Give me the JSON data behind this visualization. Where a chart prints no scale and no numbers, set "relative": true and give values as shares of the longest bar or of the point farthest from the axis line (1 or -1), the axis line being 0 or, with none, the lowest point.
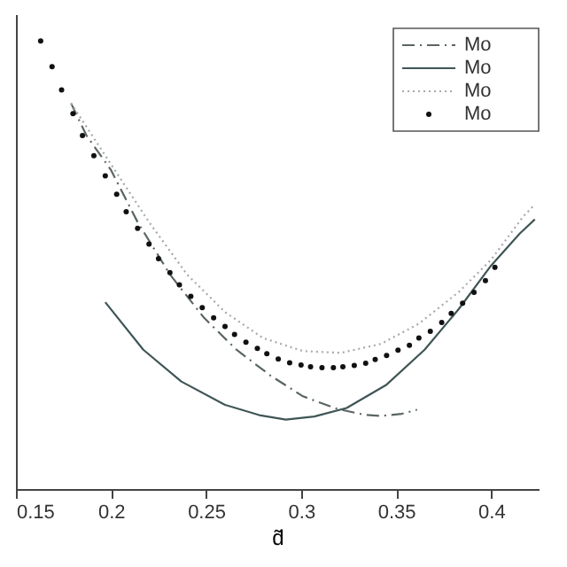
{
  "chart_data": {
    "type": "line",
    "xlabel": "d̃",
    "relative": true,
    "xlim": [
      0.15,
      0.425
    ],
    "xticks": [
      0.15,
      0.2,
      0.25,
      0.3,
      0.35,
      0.4
    ],
    "grid": false,
    "legend": "top right",
    "tick_labels": "x",
    "series": [
      {
        "name": "Mo",
        "line_style": "dashdot",
        "color": "#5a6464",
        "x": [
          0.179,
          0.187,
          0.2,
          0.214,
          0.231,
          0.249,
          0.266,
          0.284,
          0.301,
          0.319,
          0.333,
          0.342,
          0.353,
          0.361
        ],
        "values": [
          0.861,
          0.79,
          0.712,
          0.596,
          0.479,
          0.382,
          0.311,
          0.253,
          0.207,
          0.179,
          0.166,
          0.163,
          0.168,
          0.177
        ]
      },
      {
        "name": "Mo",
        "line_style": "solid",
        "color": "#3f5555",
        "x": [
          0.197,
          0.217,
          0.237,
          0.26,
          0.278,
          0.292,
          0.307,
          0.324,
          0.345,
          0.365,
          0.383,
          0.4,
          0.415,
          0.423
        ],
        "values": [
          0.417,
          0.311,
          0.24,
          0.188,
          0.165,
          0.155,
          0.162,
          0.181,
          0.233,
          0.311,
          0.402,
          0.499,
          0.57,
          0.602
        ]
      },
      {
        "name": "Mo",
        "line_style": "dotted",
        "color": "#a8a8a8",
        "x": [
          0.179,
          0.2,
          0.22,
          0.24,
          0.26,
          0.28,
          0.301,
          0.321,
          0.342,
          0.362,
          0.383,
          0.4,
          0.417,
          0.423
        ],
        "values": [
          0.861,
          0.725,
          0.596,
          0.479,
          0.395,
          0.337,
          0.308,
          0.304,
          0.324,
          0.369,
          0.44,
          0.512,
          0.609,
          0.635
        ]
      },
      {
        "name": "Mo",
        "type": "scatter",
        "marker": "circle",
        "color": "#111111",
        "x": [
          0.163,
          0.169,
          0.174,
          0.18,
          0.185,
          0.191,
          0.197,
          0.203,
          0.208,
          0.214,
          0.22,
          0.225,
          0.231,
          0.236,
          0.242,
          0.248,
          0.254,
          0.26,
          0.265,
          0.271,
          0.277,
          0.282,
          0.288,
          0.294,
          0.3,
          0.305,
          0.311,
          0.317,
          0.322,
          0.328,
          0.334,
          0.339,
          0.345,
          0.351,
          0.357,
          0.362,
          0.368,
          0.374,
          0.379,
          0.385,
          0.391,
          0.397,
          0.402
        ],
        "values": [
          1.0,
          0.943,
          0.891,
          0.838,
          0.789,
          0.744,
          0.699,
          0.658,
          0.619,
          0.582,
          0.547,
          0.514,
          0.483,
          0.456,
          0.43,
          0.405,
          0.382,
          0.363,
          0.345,
          0.328,
          0.314,
          0.302,
          0.29,
          0.282,
          0.277,
          0.273,
          0.271,
          0.271,
          0.273,
          0.276,
          0.281,
          0.289,
          0.298,
          0.31,
          0.321,
          0.337,
          0.352,
          0.372,
          0.392,
          0.415,
          0.439,
          0.465,
          0.495
        ]
      }
    ]
  }
}
